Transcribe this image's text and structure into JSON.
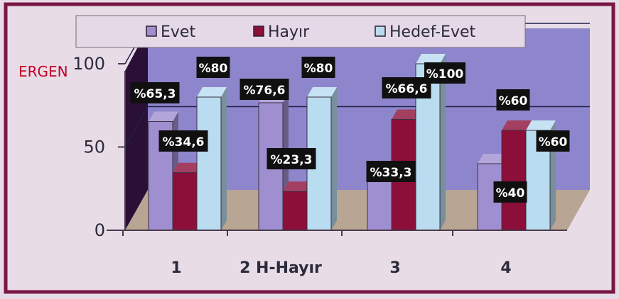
{
  "chart_data": {
    "type": "bar",
    "title": "",
    "ylabel": "ERGEN",
    "xlabel": "",
    "categories": [
      "1",
      "2 H-Hayır",
      "3",
      "4"
    ],
    "series": [
      {
        "name": "Evet",
        "values": [
          65.3,
          76.6,
          33.3,
          40
        ],
        "labels": [
          "%65,3",
          "%76,6",
          "%33,3",
          "%40"
        ]
      },
      {
        "name": "Hayır",
        "values": [
          34.6,
          23.3,
          66.6,
          60
        ],
        "labels": [
          "%34,6",
          "%23,3",
          "%66,6",
          "%60"
        ]
      },
      {
        "name": "Hedef-Evet",
        "values": [
          80,
          80,
          100,
          60
        ],
        "labels": [
          "%80",
          "%80",
          "%100",
          "%60"
        ]
      }
    ],
    "ylim": [
      0,
      100
    ],
    "yticks": [
      "0",
      "50",
      "100"
    ],
    "legend_position": "top",
    "colors": {
      "Evet": "#9f8fd0",
      "Hayır": "#8c0f3a",
      "Hedef-Evet": "#b9dcf0",
      "frame": "#7a1646",
      "plot_wall": "#8e86cc",
      "floor": "#b8a593",
      "label_box": "#101010"
    },
    "grid": true
  }
}
